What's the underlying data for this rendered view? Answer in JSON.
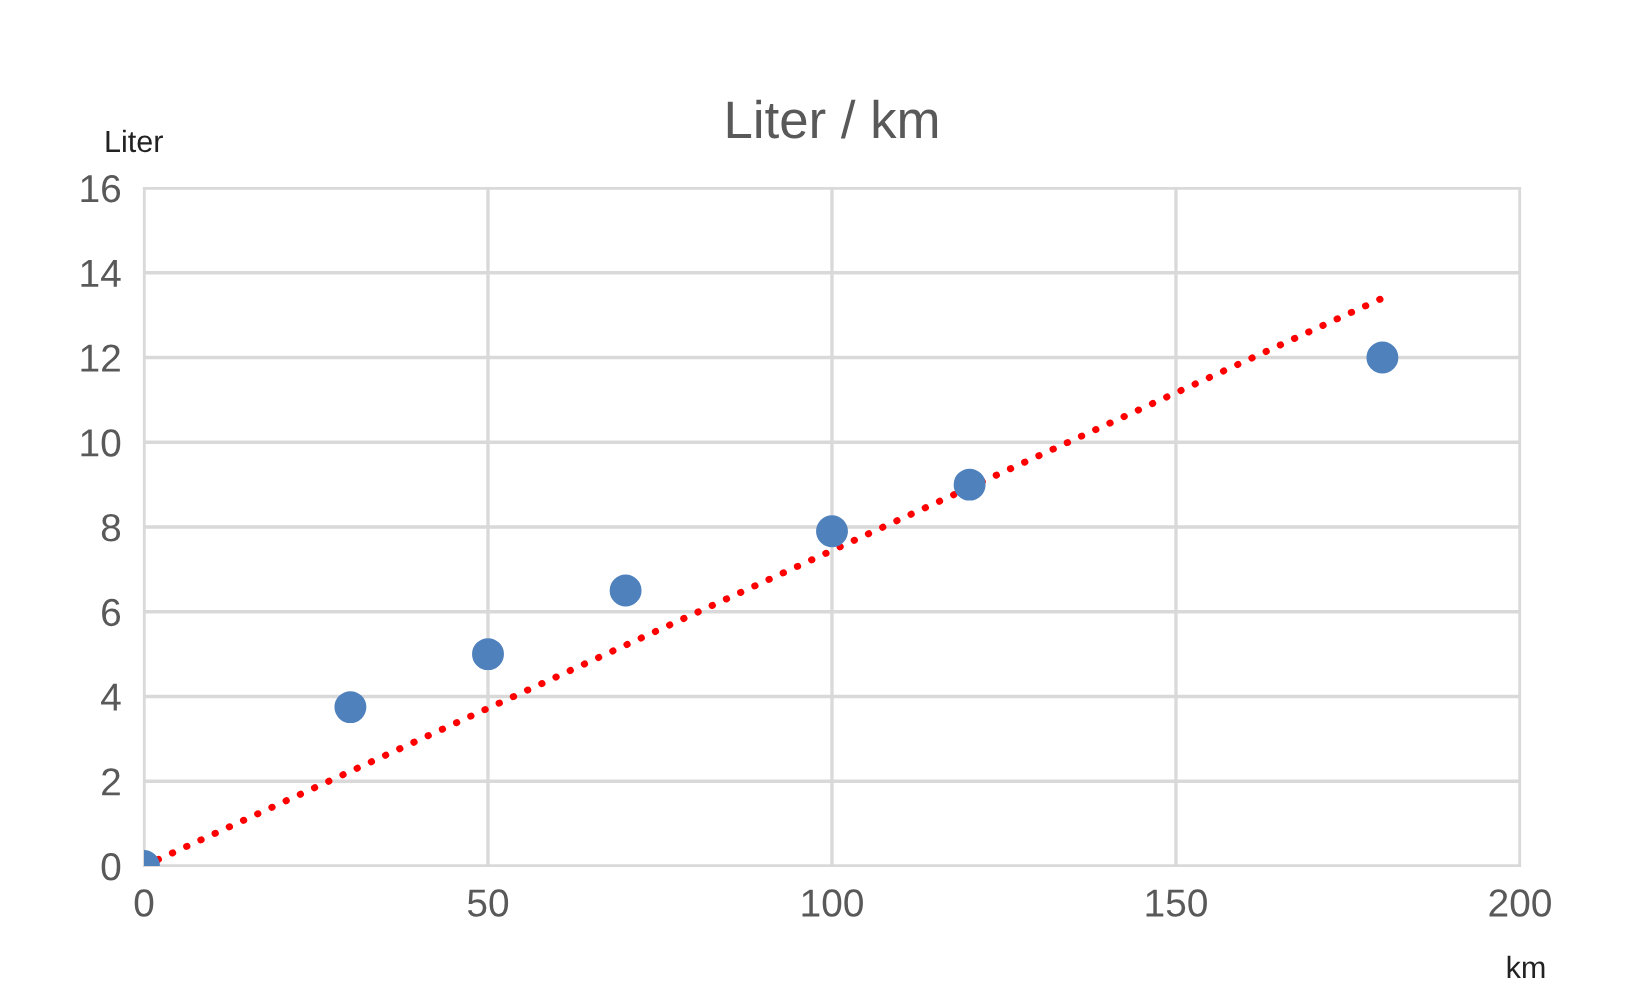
{
  "chart_data": {
    "type": "scatter",
    "title": "Liter / km",
    "xlabel": "km",
    "ylabel": "Liter",
    "xlim": [
      0,
      200
    ],
    "xticks": [
      0,
      50,
      100,
      150,
      200
    ],
    "ylim": [
      0,
      16
    ],
    "yticks": [
      0,
      2,
      4,
      6,
      8,
      10,
      12,
      14,
      16
    ],
    "grid": true,
    "series": [
      {
        "color": "#4f81bd",
        "marker": "circle",
        "x": [
          0,
          30,
          50,
          70,
          100,
          120,
          180
        ],
        "values": [
          0,
          3.75,
          5,
          6.5,
          7.9,
          9,
          12
        ]
      },
      {
        "type": "line",
        "color": "#ff0000",
        "line_style": "dotted",
        "marker": "none",
        "x": [
          0,
          180
        ],
        "values": [
          0,
          13.4
        ]
      }
    ]
  }
}
